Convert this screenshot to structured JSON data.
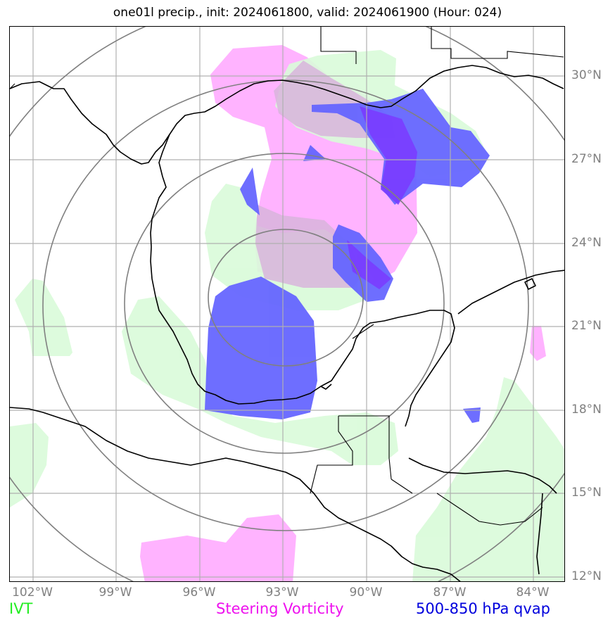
{
  "title": "one01l precip., init: 2024061800, valid: 2024061900 (Hour: 024)",
  "lon_labels": [
    "102°W",
    "99°W",
    "96°W",
    "93°W",
    "90°W",
    "87°W",
    "84°W"
  ],
  "lat_labels": [
    "30°N",
    "27°N",
    "24°N",
    "21°N",
    "18°N",
    "15°N",
    "12°N"
  ],
  "legend": {
    "ivt": {
      "label": "IVT",
      "color": "#22ee22"
    },
    "steering": {
      "label": "Steering Vorticity",
      "color": "#ee11ee"
    },
    "qvap": {
      "label": "500-850 hPa qvap",
      "color": "#0000dd"
    }
  },
  "colors": {
    "ivt_fill": "#d9fbd9",
    "steering_fill": "#ffb3ff",
    "qvap_fill": "#6666ff",
    "qvap_strong": "#7a3cff",
    "grid": "#b0b0b0",
    "range_rings": "#808080",
    "coast": "#000000"
  }
}
